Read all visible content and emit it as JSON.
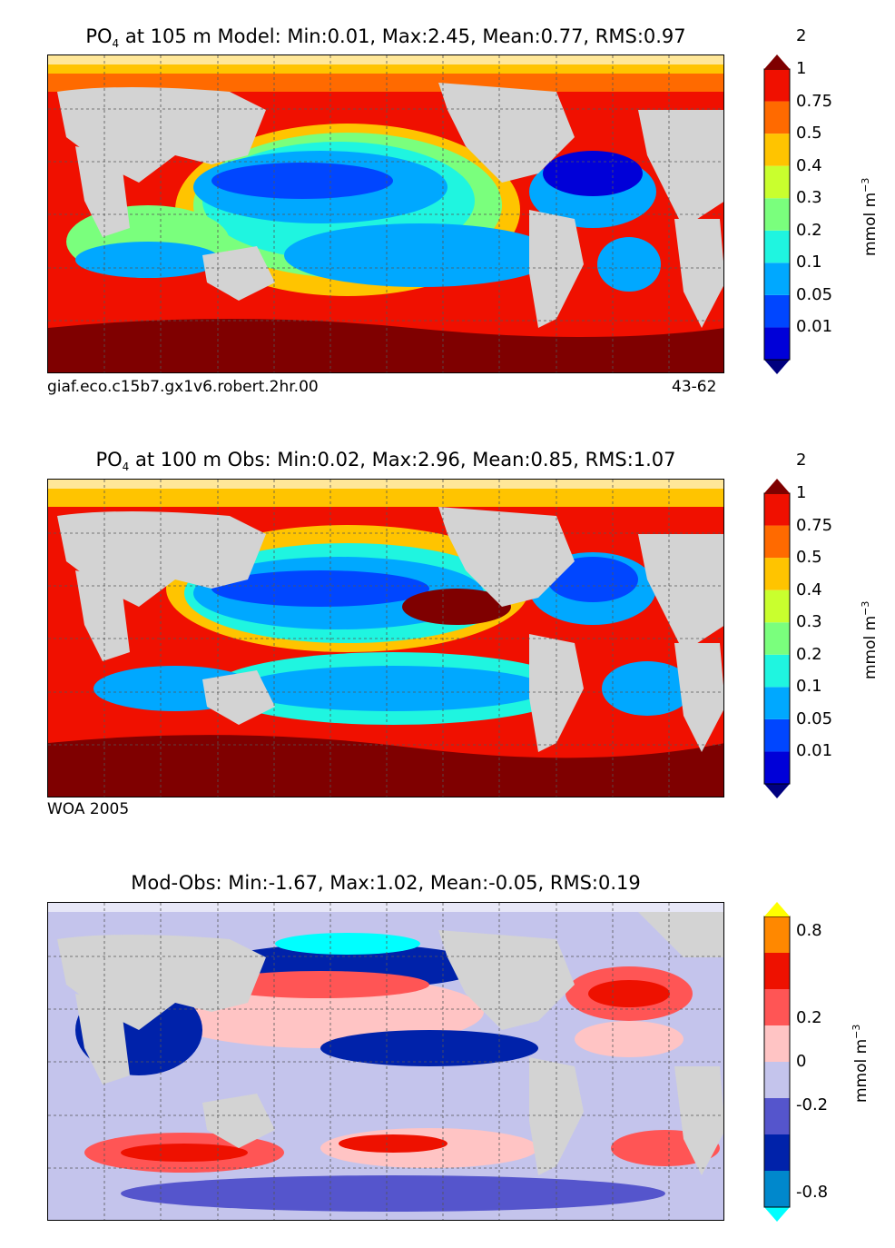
{
  "panels": [
    {
      "title_prefix": "PO",
      "title_sub": "4",
      "title_rest": "  at 105 m Model: Min:0.01, Max:2.45, Mean:0.77, RMS:0.97",
      "left_note": "giaf.eco.c15b7.gx1v6.robert.2hr.00",
      "right_note": "43-62"
    },
    {
      "title_prefix": "PO",
      "title_sub": "4",
      "title_rest": "  at 100 m Obs: Min:0.02, Max:2.96, Mean:0.85, RMS:1.07",
      "left_note": "WOA 2005",
      "right_note": ""
    },
    {
      "title_prefix": "",
      "title_sub": "",
      "title_rest": "Mod-Obs: Min:-1.67, Max:1.02, Mean:-0.05, RMS:0.19",
      "left_note": "",
      "right_note": ""
    }
  ],
  "colorbars": [
    {
      "unit_label": "mmol m",
      "unit_sup": "−3",
      "colors": [
        "#00007f",
        "#0000d8",
        "#0046ff",
        "#00a8ff",
        "#1ff5e0",
        "#7aff7d",
        "#c9ff2e",
        "#ffc400",
        "#ff6a00",
        "#f01000",
        "#7f0000"
      ],
      "ticks": [
        "0.01",
        "0.05",
        "0.1",
        "0.2",
        "0.3",
        "0.4",
        "0.5",
        "0.75",
        "1",
        "2"
      ]
    },
    {
      "unit_label": "mmol m",
      "unit_sup": "−3",
      "colors": [
        "#00007f",
        "#0000d8",
        "#0046ff",
        "#00a8ff",
        "#1ff5e0",
        "#7aff7d",
        "#c9ff2e",
        "#ffc400",
        "#ff6a00",
        "#f01000",
        "#7f0000"
      ],
      "ticks": [
        "0.01",
        "0.05",
        "0.1",
        "0.2",
        "0.3",
        "0.4",
        "0.5",
        "0.75",
        "1",
        "2"
      ]
    },
    {
      "unit_label": "mmol m",
      "unit_sup": "−3",
      "colors": [
        "#00ffff",
        "#0088cc",
        "#0022aa",
        "#5555cc",
        "#c4c4ec",
        "#ffc4c4",
        "#ff5555",
        "#ee1100",
        "#ff8800",
        "#ffff00"
      ],
      "ticks": [
        "-0.8",
        "-0.2",
        "0",
        "0.2",
        "0.8"
      ]
    }
  ],
  "chart_data": [
    {
      "type": "heatmap",
      "title": "PO4 at 105 m Model: Min:0.01, Max:2.45, Mean:0.77, RMS:0.97",
      "variable": "PO4",
      "depth": "105 m",
      "stats": {
        "min": 0.01,
        "max": 2.45,
        "mean": 0.77,
        "rms": 0.97
      },
      "color_levels": [
        0.01,
        0.05,
        0.1,
        0.2,
        0.3,
        0.4,
        0.5,
        0.75,
        1,
        2
      ],
      "units": "mmol m^-3"
    },
    {
      "type": "heatmap",
      "title": "PO4 at 100 m Obs: Min:0.02, Max:2.96, Mean:0.85, RMS:1.07",
      "variable": "PO4",
      "depth": "100 m",
      "stats": {
        "min": 0.02,
        "max": 2.96,
        "mean": 0.85,
        "rms": 1.07
      },
      "color_levels": [
        0.01,
        0.05,
        0.1,
        0.2,
        0.3,
        0.4,
        0.5,
        0.75,
        1,
        2
      ],
      "units": "mmol m^-3"
    },
    {
      "type": "heatmap",
      "title": "Mod-Obs: Min:-1.67, Max:1.02, Mean:-0.05, RMS:0.19",
      "stats": {
        "min": -1.67,
        "max": 1.02,
        "mean": -0.05,
        "rms": 0.19
      },
      "color_ticks": [
        -0.8,
        -0.2,
        0,
        0.2,
        0.8
      ],
      "units": "mmol m^-3"
    }
  ]
}
